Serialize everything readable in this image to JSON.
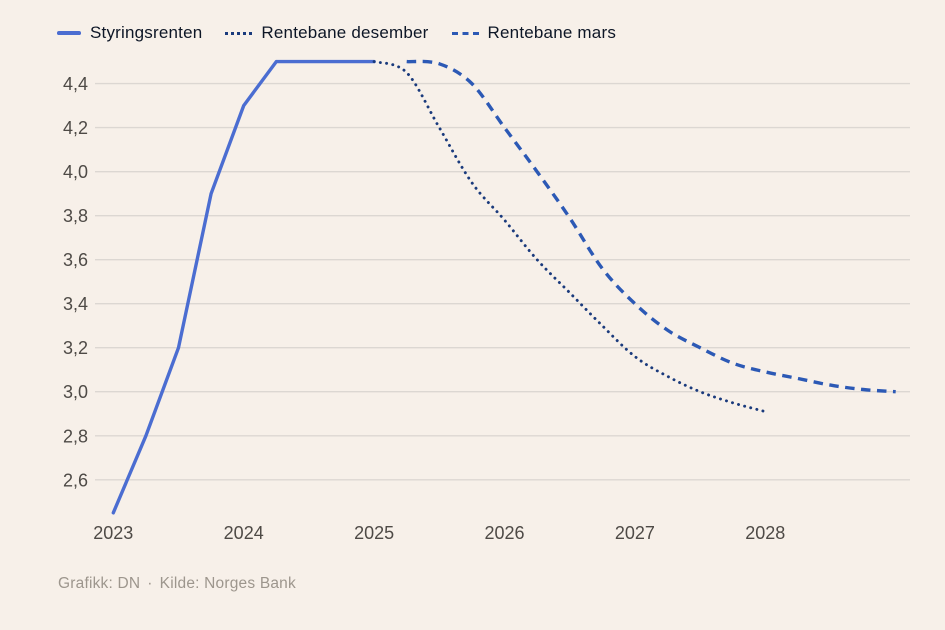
{
  "page": {
    "background": "#f7f0e9",
    "grid_color": "#dcd7d2",
    "tick_color": "#4e4a46"
  },
  "footer": {
    "credit": "Grafikk: DN",
    "separator": "·",
    "source": "Kilde: Norges Bank"
  },
  "chart_data": {
    "type": "line",
    "title": "",
    "xlabel": "",
    "ylabel": "",
    "x_unit": "year",
    "xlim": [
      2022.86,
      2029.11
    ],
    "ylim": [
      2.44,
      4.53
    ],
    "grid": "horizontal",
    "legend_position": "top-left",
    "yticks": [
      {
        "value": 4.4,
        "label": "4,4"
      },
      {
        "value": 4.2,
        "label": "4,2"
      },
      {
        "value": 4.0,
        "label": "4,0"
      },
      {
        "value": 3.8,
        "label": "3,8"
      },
      {
        "value": 3.6,
        "label": "3,6"
      },
      {
        "value": 3.4,
        "label": "3,4"
      },
      {
        "value": 3.2,
        "label": "3,2"
      },
      {
        "value": 3.0,
        "label": "3,0"
      },
      {
        "value": 2.8,
        "label": "2,8"
      },
      {
        "value": 2.6,
        "label": "2,6"
      }
    ],
    "xticks": [
      {
        "value": 2023,
        "label": "2023"
      },
      {
        "value": 2024,
        "label": "2024"
      },
      {
        "value": 2025,
        "label": "2025"
      },
      {
        "value": 2026,
        "label": "2026"
      },
      {
        "value": 2027,
        "label": "2027"
      },
      {
        "value": 2028,
        "label": "2028"
      }
    ],
    "series": [
      {
        "name": "Styringsrenten",
        "style": "solid",
        "color": "#4b6dd1",
        "smooth": false,
        "points": [
          [
            2023.0,
            2.45
          ],
          [
            2023.25,
            2.8
          ],
          [
            2023.5,
            3.2
          ],
          [
            2023.75,
            3.9
          ],
          [
            2024.0,
            4.3
          ],
          [
            2024.25,
            4.5
          ],
          [
            2024.5,
            4.5
          ],
          [
            2024.75,
            4.5
          ],
          [
            2025.0,
            4.5
          ]
        ]
      },
      {
        "name": "Rentebane desember",
        "style": "dotted",
        "color": "#1a3a7c",
        "smooth": true,
        "points": [
          [
            2025.0,
            4.5
          ],
          [
            2025.25,
            4.45
          ],
          [
            2025.5,
            4.2
          ],
          [
            2025.75,
            3.95
          ],
          [
            2026.0,
            3.78
          ],
          [
            2026.25,
            3.6
          ],
          [
            2026.5,
            3.45
          ],
          [
            2026.75,
            3.3
          ],
          [
            2027.0,
            3.16
          ],
          [
            2027.25,
            3.07
          ],
          [
            2027.5,
            3.0
          ],
          [
            2027.75,
            2.95
          ],
          [
            2028.0,
            2.91
          ]
        ]
      },
      {
        "name": "Rentebane mars",
        "style": "dashed",
        "color": "#2c59b5",
        "smooth": true,
        "points": [
          [
            2025.25,
            4.5
          ],
          [
            2025.5,
            4.49
          ],
          [
            2025.75,
            4.4
          ],
          [
            2026.0,
            4.2
          ],
          [
            2026.25,
            4.0
          ],
          [
            2026.5,
            3.79
          ],
          [
            2026.75,
            3.56
          ],
          [
            2027.0,
            3.4
          ],
          [
            2027.25,
            3.28
          ],
          [
            2027.5,
            3.2
          ],
          [
            2027.75,
            3.13
          ],
          [
            2028.0,
            3.09
          ],
          [
            2028.25,
            3.06
          ],
          [
            2028.5,
            3.03
          ],
          [
            2028.75,
            3.01
          ],
          [
            2029.0,
            3.0
          ]
        ]
      }
    ]
  }
}
